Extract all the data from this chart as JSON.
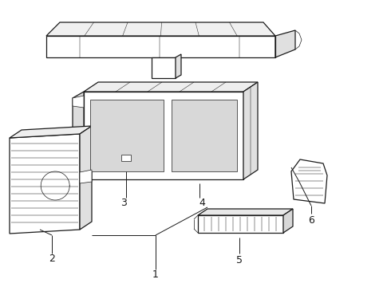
{
  "bg_color": "#ffffff",
  "line_color": "#1a1a1a",
  "lw_main": 0.9,
  "lw_detail": 0.5,
  "lw_thin": 0.35,
  "font_size": 9
}
